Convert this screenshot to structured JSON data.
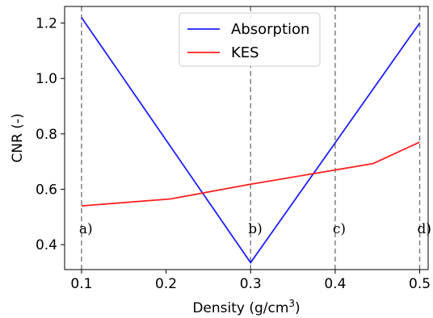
{
  "chart_data": {
    "type": "line",
    "xlabel": "Density (g/cm",
    "xlabel_sup": "3",
    "xlabel_close": ")",
    "ylabel": "CNR (-)",
    "xlim": [
      0.08,
      0.51
    ],
    "ylim": [
      0.31,
      1.26
    ],
    "xticks": [
      0.1,
      0.2,
      0.3,
      0.4,
      0.5
    ],
    "xtick_labels": [
      "0.1",
      "0.2",
      "0.3",
      "0.4",
      "0.5"
    ],
    "yticks": [
      0.4,
      0.6,
      0.8,
      1.0,
      1.2
    ],
    "ytick_labels": [
      "0.4",
      "0.6",
      "0.8",
      "1.0",
      "1.2"
    ],
    "grid": false,
    "legend_position": "top-center",
    "series": [
      {
        "name": "Absorption",
        "color": "#1f1fff",
        "x": [
          0.1,
          0.3,
          0.5
        ],
        "y": [
          1.22,
          0.335,
          1.2
        ]
      },
      {
        "name": "KES",
        "color": "#ff2020",
        "x": [
          0.1,
          0.205,
          0.3,
          0.445,
          0.5
        ],
        "y": [
          0.54,
          0.565,
          0.618,
          0.693,
          0.77
        ]
      }
    ],
    "vlines": [
      {
        "x": 0.1,
        "label": "a)"
      },
      {
        "x": 0.3,
        "label": "b)"
      },
      {
        "x": 0.4,
        "label": "c)"
      },
      {
        "x": 0.5,
        "label": "d)"
      }
    ],
    "vline_label_y": 0.45
  }
}
